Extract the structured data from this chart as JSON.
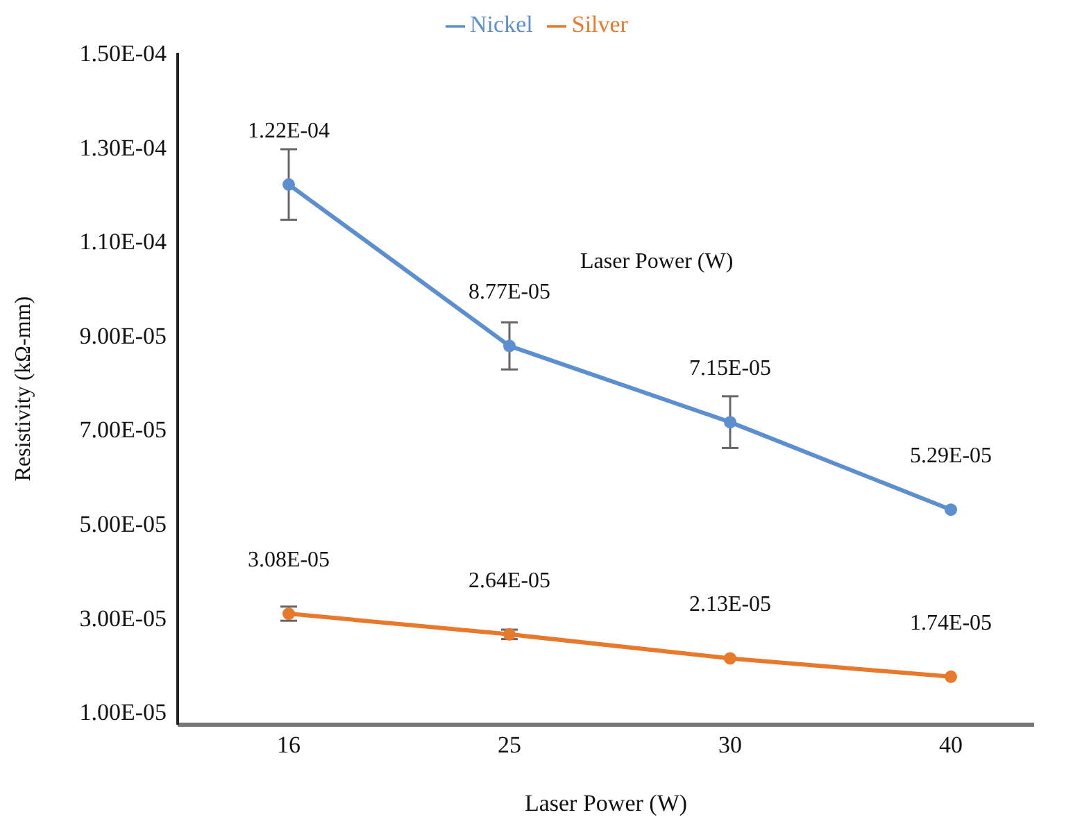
{
  "chart_data": {
    "type": "line",
    "xlabel": "Laser Power (W)",
    "ylabel": "Resistivity (kΩ-mm)",
    "categories": [
      "16",
      "25",
      "30",
      "40"
    ],
    "series": [
      {
        "name": "Nickel",
        "color": "#5b8fcf",
        "values": [
          0.000122,
          8.77e-05,
          7.15e-05,
          5.29e-05
        ],
        "errors": [
          7.5e-06,
          5e-06,
          5.5e-06,
          null
        ],
        "value_labels": [
          "1.22E-04",
          "8.77E-05",
          "7.15E-05",
          "5.29E-05"
        ]
      },
      {
        "name": "Silver",
        "color": "#e8782a",
        "values": [
          3.08e-05,
          2.64e-05,
          2.13e-05,
          1.74e-05
        ],
        "errors": [
          1.5e-06,
          1e-06,
          null,
          null
        ],
        "value_labels": [
          "3.08E-05",
          "2.64E-05",
          "2.13E-05",
          "1.74E-05"
        ]
      }
    ],
    "ylim": [
      7.2e-06,
      0.00015
    ],
    "yticks": [
      {
        "value": 1e-05,
        "label": "1.00E-05"
      },
      {
        "value": 3e-05,
        "label": "3.00E-05"
      },
      {
        "value": 5e-05,
        "label": "5.00E-05"
      },
      {
        "value": 7e-05,
        "label": "7.00E-05"
      },
      {
        "value": 9e-05,
        "label": "9.00E-05"
      },
      {
        "value": 0.00011,
        "label": "1.10E-04"
      },
      {
        "value": 0.00013,
        "label": "1.30E-04"
      },
      {
        "value": 0.00015,
        "label": "1.50E-04"
      }
    ],
    "annotations": [
      "Laser Power (W)"
    ],
    "legend": "top",
    "grid": false,
    "marker": "circle",
    "line_style": "solid"
  }
}
